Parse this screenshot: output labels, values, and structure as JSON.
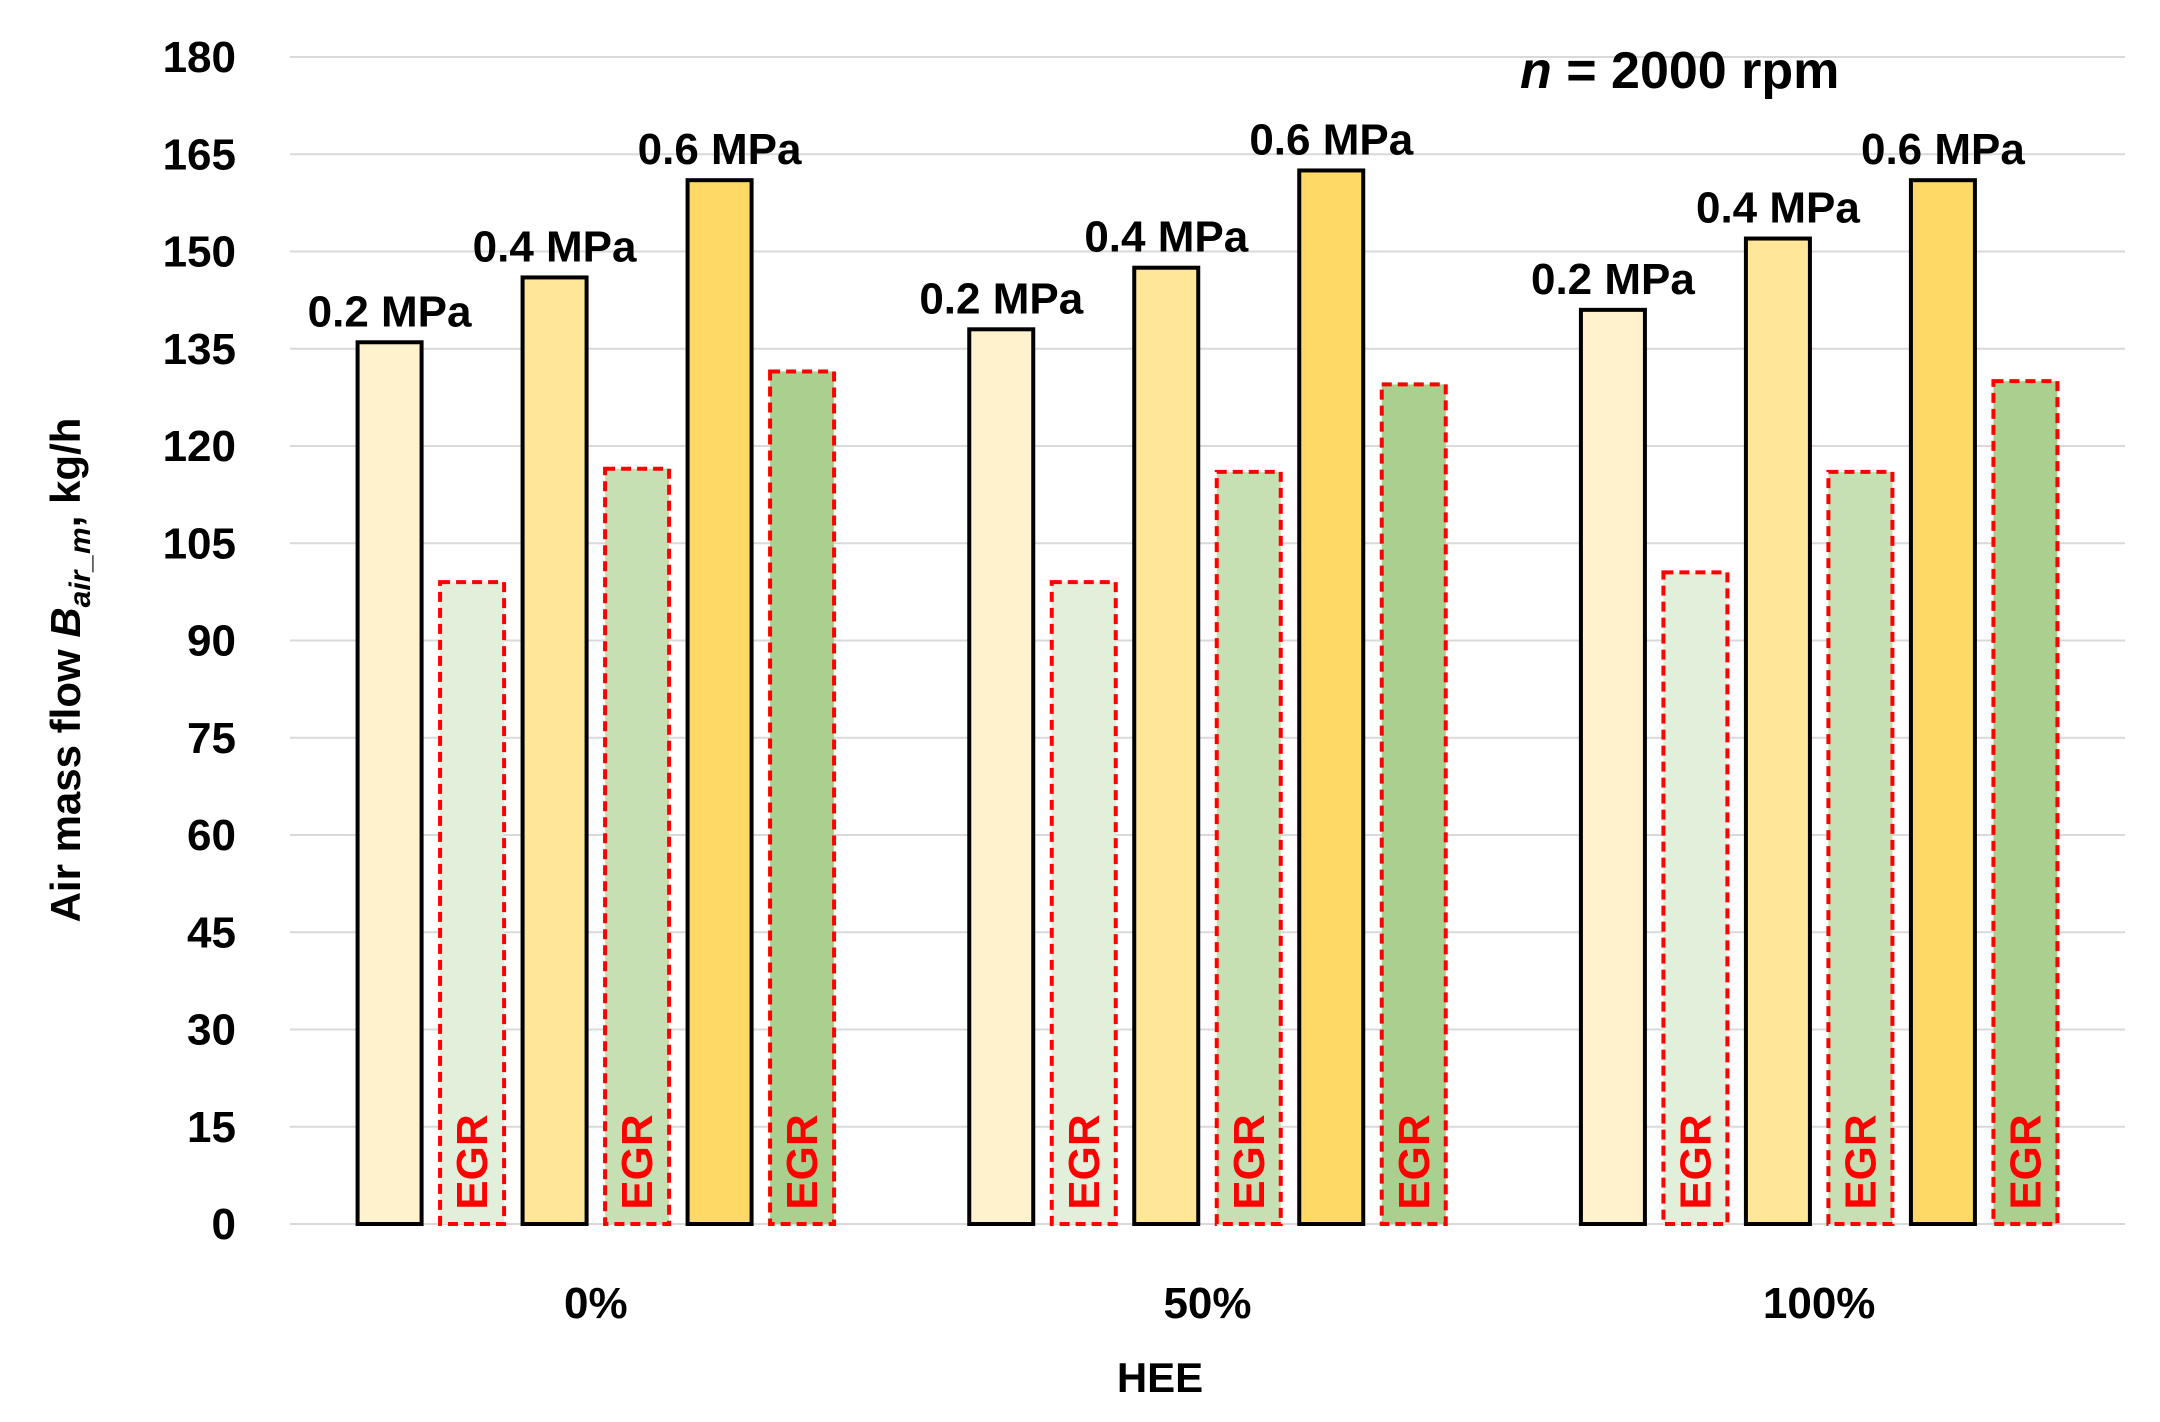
{
  "chart_data": {
    "type": "bar",
    "xlabel": "HEE",
    "ylabel": {
      "prefix": "Air mass flow ",
      "symbol": "B",
      "subscript": "air_m",
      "suffix": ", kg/h"
    },
    "annotation": {
      "variable": "n",
      "text": " = 2000 rpm"
    },
    "ylim": [
      0,
      180
    ],
    "yticks": [
      0,
      15,
      30,
      45,
      60,
      75,
      90,
      105,
      120,
      135,
      150,
      165,
      180
    ],
    "grid": true,
    "categories": [
      "0%",
      "50%",
      "100%"
    ],
    "egr_label": "EGR",
    "series": [
      {
        "name": "0.2 MPa",
        "egr": false,
        "values": [
          136,
          138,
          141
        ],
        "label": "0.2 MPa",
        "fill": "#fff2cc",
        "stroke": "#000000"
      },
      {
        "name": "0.2 MPa EGR",
        "egr": true,
        "values": [
          99,
          99,
          100.5
        ],
        "fill": "#e2efda",
        "stroke": "#ff0000"
      },
      {
        "name": "0.4 MPa",
        "egr": false,
        "values": [
          146,
          147.5,
          152
        ],
        "label": "0.4 MPa",
        "fill": "#ffe699",
        "stroke": "#000000"
      },
      {
        "name": "0.4 MPa EGR",
        "egr": true,
        "values": [
          116.5,
          116,
          116
        ],
        "fill": "#c6e0b4",
        "stroke": "#ff0000"
      },
      {
        "name": "0.6 MPa",
        "egr": false,
        "values": [
          161,
          162.5,
          161
        ],
        "label": "0.6 MPa",
        "fill": "#ffd966",
        "stroke": "#000000"
      },
      {
        "name": "0.6 MPa EGR",
        "egr": true,
        "values": [
          131.5,
          129.5,
          130
        ],
        "fill": "#a9d08e",
        "stroke": "#ff0000"
      }
    ]
  }
}
